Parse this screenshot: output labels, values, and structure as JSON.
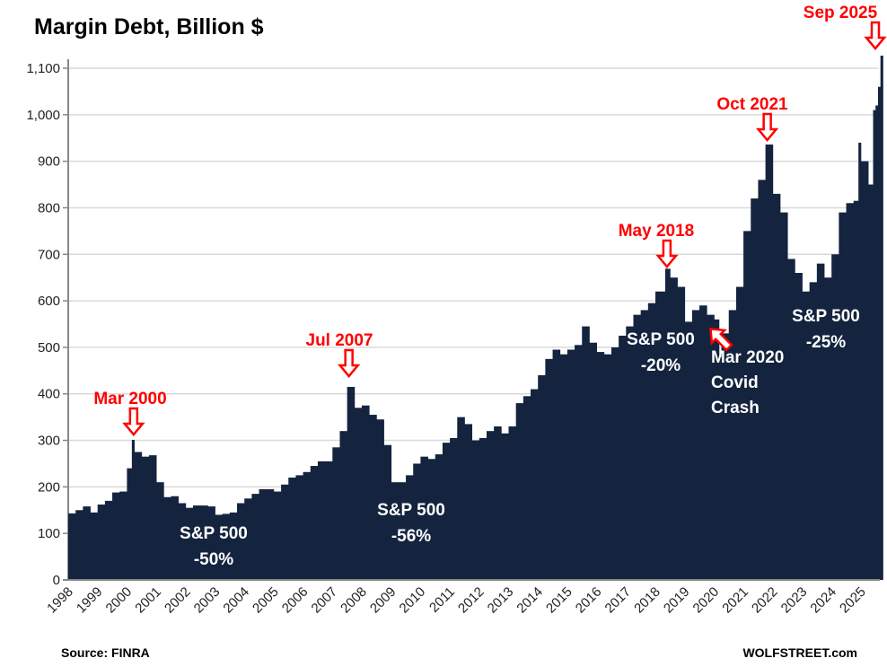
{
  "chart_data": {
    "type": "bar",
    "title": "Margin Debt, Billion $",
    "xlabel": "",
    "ylabel": "",
    "ylim": [
      0,
      1150
    ],
    "yticks": [
      "0",
      "100",
      "200",
      "300",
      "400",
      "500",
      "600",
      "700",
      "800",
      "900",
      "1,000",
      "1,100"
    ],
    "ytick_values": [
      0,
      100,
      200,
      300,
      400,
      500,
      600,
      700,
      800,
      900,
      1000,
      1100
    ],
    "xticks": [
      "1998",
      "1999",
      "2000",
      "2001",
      "2002",
      "2003",
      "2004",
      "2005",
      "2006",
      "2007",
      "2008",
      "2009",
      "2010",
      "2011",
      "2012",
      "2013",
      "2014",
      "2015",
      "2016",
      "2017",
      "2018",
      "2019",
      "2020",
      "2021",
      "2022",
      "2023",
      "2024",
      "2025"
    ],
    "grid": true,
    "legend": "none",
    "color": "#14243f",
    "x": [
      "1998-01",
      "1998-04",
      "1998-07",
      "1998-10",
      "1999-01",
      "1999-04",
      "1999-07",
      "1999-10",
      "2000-01",
      "2000-03",
      "2000-04",
      "2000-07",
      "2000-10",
      "2001-01",
      "2001-04",
      "2001-07",
      "2001-10",
      "2002-01",
      "2002-04",
      "2002-07",
      "2002-10",
      "2003-01",
      "2003-04",
      "2003-07",
      "2003-10",
      "2004-01",
      "2004-04",
      "2004-07",
      "2004-10",
      "2005-01",
      "2005-04",
      "2005-07",
      "2005-10",
      "2006-01",
      "2006-04",
      "2006-07",
      "2006-10",
      "2007-01",
      "2007-04",
      "2007-07",
      "2007-10",
      "2008-01",
      "2008-04",
      "2008-07",
      "2008-10",
      "2009-01",
      "2009-04",
      "2009-07",
      "2009-10",
      "2010-01",
      "2010-04",
      "2010-07",
      "2010-10",
      "2011-01",
      "2011-04",
      "2011-07",
      "2011-10",
      "2012-01",
      "2012-04",
      "2012-07",
      "2012-10",
      "2013-01",
      "2013-04",
      "2013-07",
      "2013-10",
      "2014-01",
      "2014-04",
      "2014-07",
      "2014-10",
      "2015-01",
      "2015-04",
      "2015-07",
      "2015-10",
      "2016-01",
      "2016-04",
      "2016-07",
      "2016-10",
      "2017-01",
      "2017-04",
      "2017-07",
      "2017-10",
      "2018-01",
      "2018-05",
      "2018-07",
      "2018-10",
      "2019-01",
      "2019-04",
      "2019-07",
      "2019-10",
      "2020-01",
      "2020-03",
      "2020-04",
      "2020-07",
      "2020-10",
      "2021-01",
      "2021-04",
      "2021-07",
      "2021-10",
      "2022-01",
      "2022-04",
      "2022-07",
      "2022-10",
      "2023-01",
      "2023-04",
      "2023-07",
      "2023-10",
      "2024-01",
      "2024-04",
      "2024-07",
      "2024-10",
      "2024-12",
      "2025-01",
      "2025-04",
      "2025-06",
      "2025-07",
      "2025-08",
      "2025-09"
    ],
    "values": [
      143,
      150,
      158,
      145,
      162,
      170,
      188,
      190,
      240,
      301,
      275,
      265,
      268,
      210,
      178,
      180,
      165,
      155,
      160,
      160,
      158,
      140,
      142,
      145,
      165,
      175,
      185,
      195,
      195,
      190,
      205,
      220,
      225,
      232,
      245,
      255,
      255,
      285,
      320,
      415,
      370,
      375,
      355,
      345,
      290,
      210,
      210,
      225,
      250,
      265,
      260,
      270,
      295,
      305,
      350,
      335,
      300,
      305,
      320,
      330,
      315,
      330,
      380,
      395,
      410,
      440,
      475,
      495,
      485,
      495,
      505,
      545,
      510,
      490,
      485,
      500,
      525,
      545,
      570,
      580,
      595,
      620,
      669,
      650,
      630,
      555,
      580,
      590,
      570,
      560,
      479,
      530,
      580,
      630,
      750,
      820,
      860,
      936,
      830,
      790,
      690,
      660,
      620,
      640,
      680,
      650,
      700,
      790,
      810,
      815,
      940,
      900,
      850,
      1010,
      1020,
      1060,
      1127
    ]
  },
  "annotations": [
    {
      "label": "Mar 2000",
      "date": "2000-03"
    },
    {
      "label": "Jul 2007",
      "date": "2007-07"
    },
    {
      "label": "May 2018",
      "date": "2018-05"
    },
    {
      "label": "Oct 2021",
      "date": "2021-10"
    },
    {
      "label": "Sep 2025",
      "date": "2025-09"
    }
  ],
  "covid_note": {
    "lines": [
      "Mar 2020",
      "Covid",
      "Crash"
    ],
    "date": "2020-03"
  },
  "drawdowns": [
    {
      "line1": "S&P 500",
      "line2": "-50%"
    },
    {
      "line1": "S&P 500",
      "line2": "-56%"
    },
    {
      "line1": "S&P 500",
      "line2": "-20%"
    },
    {
      "line1": "S&P 500",
      "line2": "-25%"
    }
  ],
  "footer": {
    "source": "Source: FINRA",
    "brand": "WOLFSTREET.com"
  }
}
